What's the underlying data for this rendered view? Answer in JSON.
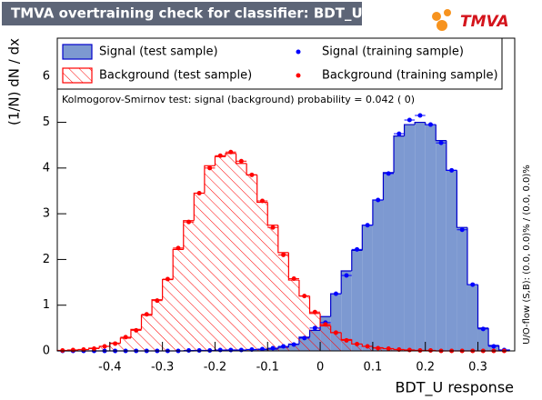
{
  "chart_data": {
    "type": "histogram",
    "title": "TMVA overtraining check for classifier: BDT_U",
    "logo": "TMVA",
    "x_label": "BDT_U response",
    "y_label": "(1/N) dN / dx",
    "annotation": "Kolmogorov-Smirnov test: signal (background) probability = 0.042 (    0)",
    "side_note": "U/O-flow (S,B): (0.0, 0.0)% / (0.0, 0.0)%",
    "xlim": [
      -0.5,
      0.37
    ],
    "ylim": [
      0,
      6.84
    ],
    "xticks": [
      -0.4,
      -0.3,
      -0.2,
      -0.1,
      0,
      0.1,
      0.2,
      0.3
    ],
    "yticks": [
      0,
      1,
      2,
      3,
      4,
      5,
      6
    ],
    "bins": [
      -0.5,
      -0.48,
      -0.46,
      -0.44,
      -0.42,
      -0.4,
      -0.38,
      -0.36,
      -0.34,
      -0.32,
      -0.3,
      -0.28,
      -0.26,
      -0.24,
      -0.22,
      -0.2,
      -0.18,
      -0.16,
      -0.14,
      -0.12,
      -0.1,
      -0.08,
      -0.06,
      -0.04,
      -0.02,
      0,
      0.02,
      0.04,
      0.06,
      0.08,
      0.1,
      0.12,
      0.14,
      0.16,
      0.18,
      0.2,
      0.22,
      0.24,
      0.26,
      0.28,
      0.3,
      0.32,
      0.34,
      0.36
    ],
    "series": [
      {
        "name": "Signal (test sample)",
        "style": "filled",
        "color": "#7d99d1",
        "line_color": "#0000cc",
        "values": [
          0,
          0,
          0,
          0,
          0,
          0,
          0,
          0,
          0,
          0,
          0,
          0,
          0,
          0.01,
          0.01,
          0.01,
          0.02,
          0.02,
          0.03,
          0.03,
          0.04,
          0.08,
          0.15,
          0.3,
          0.45,
          0.75,
          1.25,
          1.75,
          2.2,
          2.75,
          3.3,
          3.9,
          4.7,
          4.95,
          5.0,
          4.95,
          4.6,
          3.95,
          2.7,
          1.45,
          0.5,
          0.12,
          0.02
        ]
      },
      {
        "name": "Background (test sample)",
        "style": "hatched",
        "color": "#ff0000",
        "line_color": "#ff0000",
        "values": [
          0.01,
          0.02,
          0.03,
          0.06,
          0.1,
          0.17,
          0.28,
          0.47,
          0.78,
          1.12,
          1.56,
          2.22,
          2.85,
          3.45,
          4.05,
          4.25,
          4.32,
          4.1,
          3.85,
          3.25,
          2.75,
          2.15,
          1.55,
          1.2,
          0.82,
          0.55,
          0.4,
          0.25,
          0.15,
          0.1,
          0.07,
          0.05,
          0.03,
          0.02,
          0.01,
          0.01,
          0,
          0,
          0,
          0,
          0,
          0,
          0
        ]
      },
      {
        "name": "Signal (training sample)",
        "style": "points",
        "color": "#0000ff",
        "values": [
          0,
          0,
          0,
          0,
          0,
          0,
          0,
          0,
          0,
          0,
          0,
          0,
          0.01,
          0.01,
          0.01,
          0.02,
          0.02,
          0.02,
          0.03,
          0.04,
          0.06,
          0.1,
          0.14,
          0.28,
          0.5,
          0.62,
          1.25,
          1.65,
          2.22,
          2.75,
          3.3,
          3.88,
          4.75,
          5.05,
          5.15,
          4.95,
          4.55,
          3.95,
          2.65,
          1.45,
          0.48,
          0.1,
          0.02
        ]
      },
      {
        "name": "Background (training sample)",
        "style": "points",
        "color": "#ff0000",
        "values": [
          0.01,
          0.02,
          0.03,
          0.05,
          0.1,
          0.16,
          0.3,
          0.45,
          0.8,
          1.1,
          1.57,
          2.25,
          2.82,
          3.45,
          4.0,
          4.27,
          4.35,
          4.15,
          3.85,
          3.28,
          2.7,
          2.1,
          1.58,
          1.2,
          0.85,
          0.58,
          0.4,
          0.23,
          0.15,
          0.1,
          0.06,
          0.05,
          0.03,
          0.02,
          0.01,
          0.01,
          0,
          0,
          0,
          0,
          0,
          0,
          0
        ]
      }
    ]
  }
}
